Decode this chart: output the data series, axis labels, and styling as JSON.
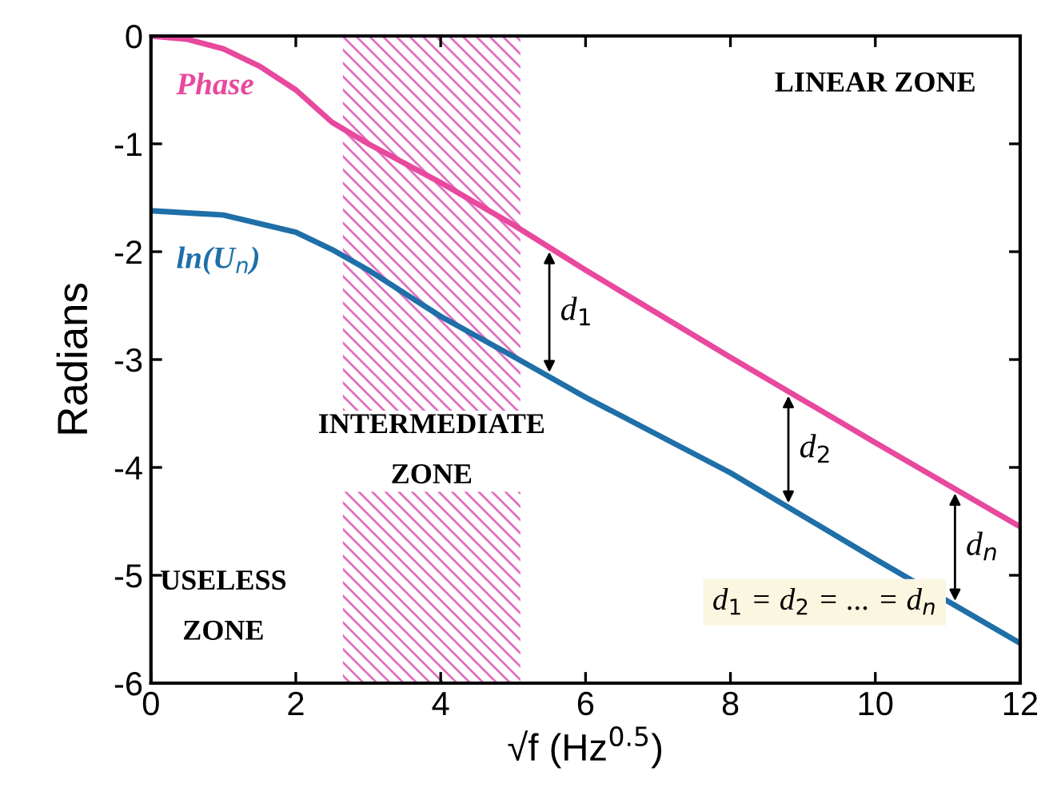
{
  "chart_data": {
    "type": "line",
    "xlabel": "√f (Hz$^{0.5}$)",
    "ylabel": "Radians",
    "xlim": [
      0,
      12
    ],
    "ylim": [
      -6,
      0
    ],
    "xticks": [
      0,
      2,
      4,
      6,
      8,
      10,
      12
    ],
    "yticks": [
      -6,
      -5,
      -4,
      -3,
      -2,
      -1,
      0
    ],
    "grid": false,
    "legend": false,
    "marker": "none",
    "line_style": "solid",
    "series": [
      {
        "name": "Phase",
        "color": "#e8489e",
        "x": [
          0,
          0.5,
          1,
          1.5,
          2,
          2.5,
          3,
          3.5,
          4,
          5,
          6,
          8,
          10,
          12
        ],
        "values": [
          0,
          -0.03,
          -0.12,
          -0.28,
          -0.5,
          -0.8,
          -1.0,
          -1.18,
          -1.36,
          -1.75,
          -2.17,
          -2.98,
          -3.77,
          -4.55
        ]
      },
      {
        "name": "ln(U$_{n}$)",
        "color": "#1f6fa8",
        "x": [
          0,
          1,
          2,
          2.5,
          3,
          4,
          5,
          6,
          8,
          10,
          12
        ],
        "values": [
          -1.62,
          -1.66,
          -1.82,
          -1.98,
          -2.17,
          -2.6,
          -2.97,
          -3.35,
          -4.05,
          -4.85,
          -5.63
        ]
      }
    ],
    "bands": [
      {
        "axis": "x",
        "from": 2.65,
        "to": 5.1,
        "label": "INTERMEDIATE\nZONE",
        "color": "#e070c0"
      }
    ],
    "annotations": [
      "d$_{1}$",
      "d$_{2}$",
      "d$_{n}$",
      "LINEAR ZONE",
      "USELESS\nZONE",
      "d$_{1}$ = d$_{2}$ = ... = d$_{n}$"
    ]
  }
}
